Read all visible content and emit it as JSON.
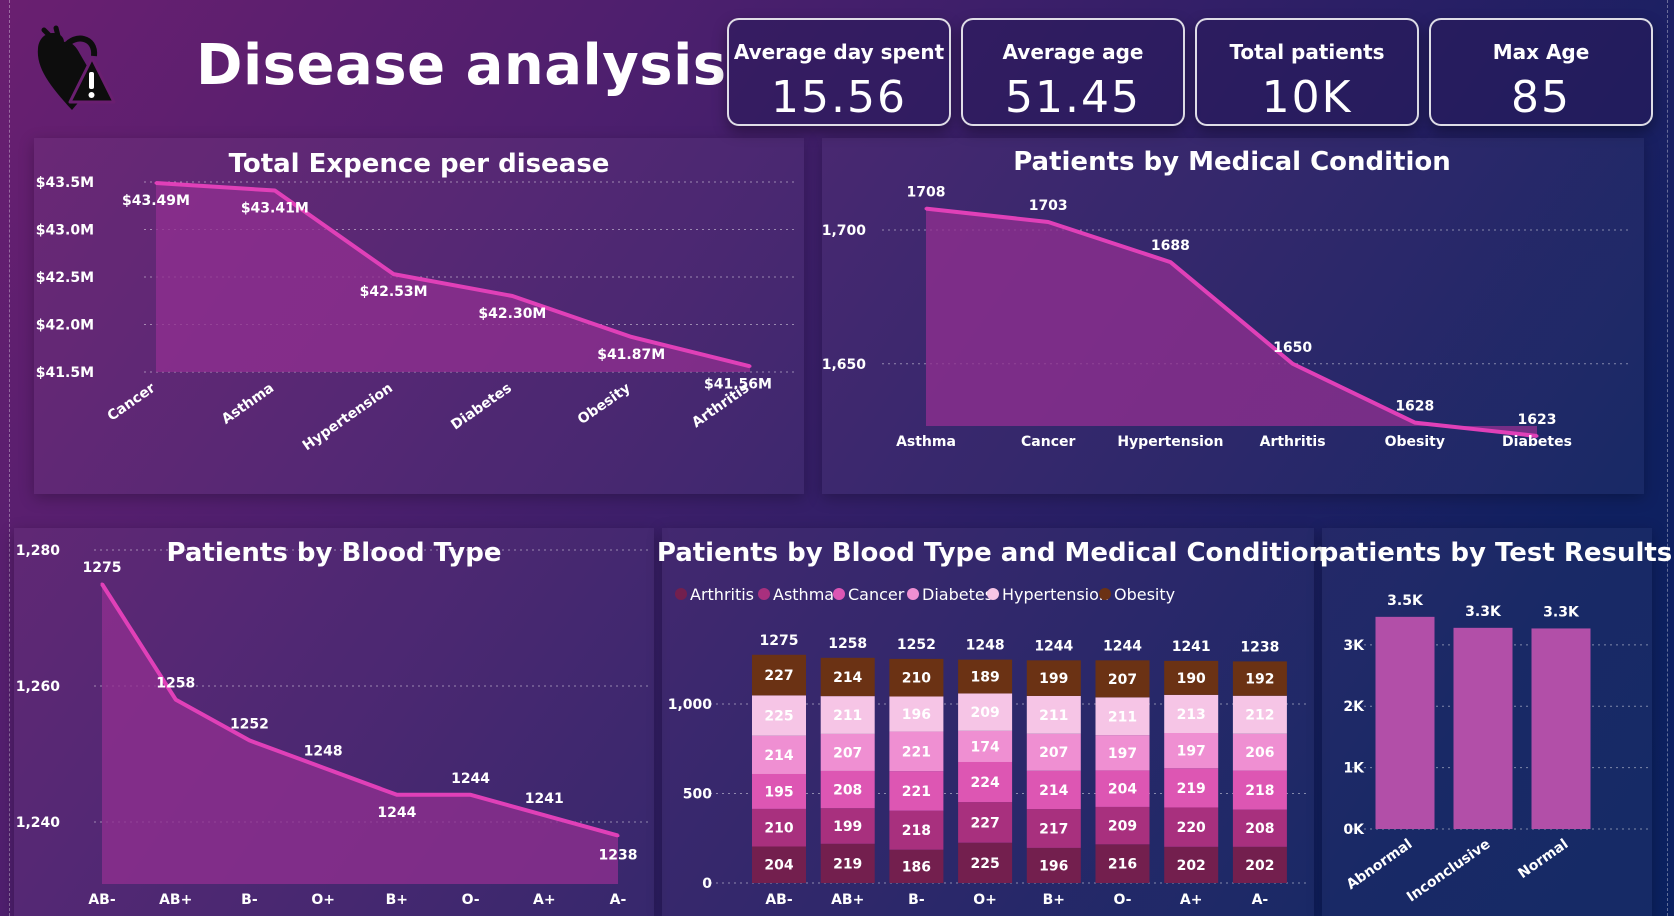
{
  "header": {
    "title": "Disease analysis",
    "logo_icon": "heart-warning-icon"
  },
  "kpis": [
    {
      "label": "Average day spent",
      "value": "15.56"
    },
    {
      "label": "Average age",
      "value": "51.45"
    },
    {
      "label": "Total patients",
      "value": "10K"
    },
    {
      "label": "Max Age",
      "value": "85"
    }
  ],
  "colors": {
    "line": "#e040b8",
    "area": "#8f2f8f",
    "bar": "#b24fa8",
    "Arthritis": "#731f4e",
    "Asthma": "#a8307e",
    "Cancer": "#dd56b3",
    "Diabetes": "#ef8fd2",
    "Hypertension": "#f6c5e6",
    "Obesity": "#6b3214"
  },
  "chart_data": [
    {
      "id": "expense",
      "type": "area",
      "title": "Total Expence per disease",
      "categories": [
        "Cancer",
        "Asthma",
        "Hypertension",
        "Diabetes",
        "Obesity",
        "Arthritis"
      ],
      "values": [
        43.49,
        43.41,
        42.53,
        42.3,
        41.87,
        41.56
      ],
      "data_labels": [
        "$43.49M",
        "$43.41M",
        "$42.53M",
        "$42.30M",
        "$41.87M",
        "$41.56M"
      ],
      "ylim": [
        41.5,
        43.5
      ],
      "yticks": [
        41.5,
        42.0,
        42.5,
        43.0,
        43.5
      ],
      "ytick_labels": [
        "$41.5M",
        "$42.0M",
        "$42.5M",
        "$43.0M",
        "$43.5M"
      ],
      "grid": true
    },
    {
      "id": "condition",
      "type": "area",
      "title": "Patients by Medical Condition",
      "categories": [
        "Asthma",
        "Cancer",
        "Hypertension",
        "Arthritis",
        "Obesity",
        "Diabetes"
      ],
      "values": [
        1708,
        1703,
        1688,
        1650,
        1628,
        1623
      ],
      "data_labels": [
        "1708",
        "1703",
        "1688",
        "1650",
        "1628",
        "1623"
      ],
      "ylim": [
        1620,
        1700
      ],
      "yticks": [
        1650,
        1700
      ],
      "ytick_labels": [
        "1,650",
        "1,700"
      ],
      "grid": true
    },
    {
      "id": "bloodtype",
      "type": "area",
      "title": "Patients by Blood Type",
      "categories": [
        "AB-",
        "AB+",
        "B-",
        "O+",
        "B+",
        "O-",
        "A+",
        "A-"
      ],
      "values": [
        1275,
        1258,
        1252,
        1248,
        1244,
        1244,
        1241,
        1238
      ],
      "data_labels": [
        "1275",
        "1258",
        "1252",
        "1248",
        "1244",
        "1244",
        "1241",
        "1238"
      ],
      "ylim": [
        1230,
        1280
      ],
      "yticks": [
        1240,
        1260,
        1280
      ],
      "ytick_labels": [
        "1,240",
        "1,260",
        "1,280"
      ],
      "grid": true
    },
    {
      "id": "stacked",
      "type": "bar",
      "stacked": true,
      "title": "Patients by Blood Type and Medical Condition",
      "legend_position": "top-left",
      "categories": [
        "AB-",
        "AB+",
        "B-",
        "O+",
        "B+",
        "O-",
        "A+",
        "A-"
      ],
      "totals": [
        "1275",
        "1258",
        "1252",
        "1248",
        "1244",
        "1244",
        "1241",
        "1238"
      ],
      "series": [
        {
          "name": "Arthritis",
          "values": [
            204,
            219,
            186,
            225,
            196,
            216,
            202,
            202
          ]
        },
        {
          "name": "Asthma",
          "values": [
            210,
            199,
            218,
            227,
            217,
            209,
            220,
            208
          ]
        },
        {
          "name": "Cancer",
          "values": [
            195,
            208,
            221,
            224,
            214,
            204,
            219,
            218
          ]
        },
        {
          "name": "Diabetes",
          "values": [
            214,
            207,
            221,
            174,
            207,
            197,
            197,
            206
          ]
        },
        {
          "name": "Hypertension",
          "values": [
            225,
            211,
            196,
            209,
            211,
            211,
            213,
            212
          ]
        },
        {
          "name": "Obesity",
          "values": [
            227,
            214,
            210,
            189,
            199,
            207,
            190,
            192
          ]
        }
      ],
      "ylim": [
        0,
        1400
      ],
      "yticks": [
        0,
        500,
        1000
      ],
      "ytick_labels": [
        "0",
        "500",
        "1,000"
      ]
    },
    {
      "id": "testresults",
      "type": "bar",
      "title": "patients by Test Results",
      "categories": [
        "Abnormal",
        "Inconclusive",
        "Normal"
      ],
      "values": [
        3456,
        3277,
        3267
      ],
      "data_labels": [
        "3.5K",
        "3.3K",
        "3.3K"
      ],
      "ylim": [
        0,
        3600
      ],
      "yticks": [
        0,
        1000,
        2000,
        3000
      ],
      "ytick_labels": [
        "0K",
        "1K",
        "2K",
        "3K"
      ],
      "grid": true
    }
  ]
}
